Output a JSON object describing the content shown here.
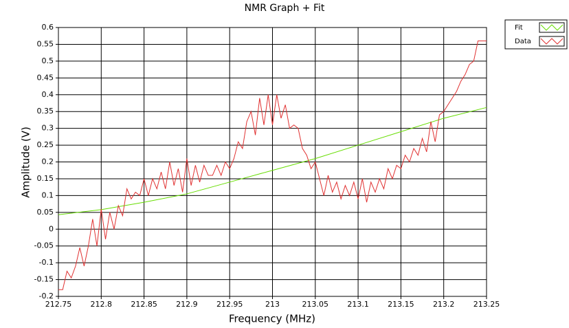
{
  "chart_data": {
    "type": "line",
    "title": "NMR Graph + Fit",
    "x_label": "Frequency (MHz)",
    "y_label": "Amplitude (V)",
    "xlim": [
      212.75,
      213.25
    ],
    "ylim": [
      -0.2,
      0.6
    ],
    "xticks": [
      212.75,
      212.8,
      212.85,
      212.9,
      212.95,
      213,
      213.05,
      213.1,
      213.15,
      213.2,
      213.25
    ],
    "yticks": [
      -0.2,
      -0.15,
      -0.1,
      -0.05,
      0,
      0.05,
      0.1,
      0.15,
      0.2,
      0.25,
      0.3,
      0.35,
      0.4,
      0.45,
      0.5,
      0.55,
      0.6
    ],
    "grid": true,
    "legend": "top-right",
    "series": [
      {
        "name": "Fit",
        "color": "#66dd00",
        "x": [
          212.75,
          212.8,
          212.85,
          212.9,
          212.95,
          213,
          213.05,
          213.1,
          213.15,
          213.2,
          213.25
        ],
        "values": [
          0.043,
          0.058,
          0.08,
          0.105,
          0.14,
          0.175,
          0.21,
          0.25,
          0.29,
          0.33,
          0.362
        ]
      },
      {
        "name": "Data",
        "color": "#e03030",
        "x": [
          212.75,
          212.755,
          212.76,
          212.765,
          212.77,
          212.775,
          212.78,
          212.785,
          212.79,
          212.795,
          212.8,
          212.805,
          212.81,
          212.815,
          212.82,
          212.825,
          212.83,
          212.835,
          212.84,
          212.845,
          212.85,
          212.855,
          212.86,
          212.865,
          212.87,
          212.875,
          212.88,
          212.885,
          212.89,
          212.895,
          212.9,
          212.905,
          212.91,
          212.915,
          212.92,
          212.925,
          212.93,
          212.935,
          212.94,
          212.945,
          212.95,
          212.955,
          212.96,
          212.965,
          212.97,
          212.975,
          212.98,
          212.985,
          212.99,
          212.995,
          213,
          213.005,
          213.01,
          213.015,
          213.02,
          213.025,
          213.03,
          213.035,
          213.04,
          213.045,
          213.05,
          213.055,
          213.06,
          213.065,
          213.07,
          213.075,
          213.08,
          213.085,
          213.09,
          213.095,
          213.1,
          213.105,
          213.11,
          213.115,
          213.12,
          213.125,
          213.13,
          213.135,
          213.14,
          213.145,
          213.15,
          213.155,
          213.16,
          213.165,
          213.17,
          213.175,
          213.18,
          213.185,
          213.19,
          213.195,
          213.2,
          213.205,
          213.21,
          213.215,
          213.22,
          213.225,
          213.23,
          213.235,
          213.24,
          213.245,
          213.25
        ],
        "values": [
          -0.18,
          -0.18,
          -0.125,
          -0.145,
          -0.11,
          -0.055,
          -0.11,
          -0.05,
          0.03,
          -0.05,
          0.06,
          -0.03,
          0.05,
          0.0,
          0.07,
          0.04,
          0.12,
          0.09,
          0.11,
          0.1,
          0.15,
          0.1,
          0.15,
          0.12,
          0.17,
          0.12,
          0.2,
          0.13,
          0.18,
          0.11,
          0.21,
          0.13,
          0.19,
          0.14,
          0.19,
          0.16,
          0.16,
          0.19,
          0.16,
          0.2,
          0.18,
          0.21,
          0.26,
          0.24,
          0.32,
          0.35,
          0.28,
          0.39,
          0.31,
          0.4,
          0.31,
          0.4,
          0.33,
          0.37,
          0.3,
          0.31,
          0.3,
          0.24,
          0.22,
          0.18,
          0.2,
          0.15,
          0.1,
          0.16,
          0.11,
          0.14,
          0.09,
          0.13,
          0.1,
          0.14,
          0.09,
          0.15,
          0.08,
          0.14,
          0.11,
          0.15,
          0.12,
          0.18,
          0.15,
          0.19,
          0.18,
          0.22,
          0.2,
          0.24,
          0.22,
          0.27,
          0.23,
          0.32,
          0.26,
          0.34,
          0.35,
          0.37,
          0.39,
          0.41,
          0.44,
          0.46,
          0.49,
          0.5,
          0.56,
          0.56,
          0.56
        ]
      }
    ]
  }
}
